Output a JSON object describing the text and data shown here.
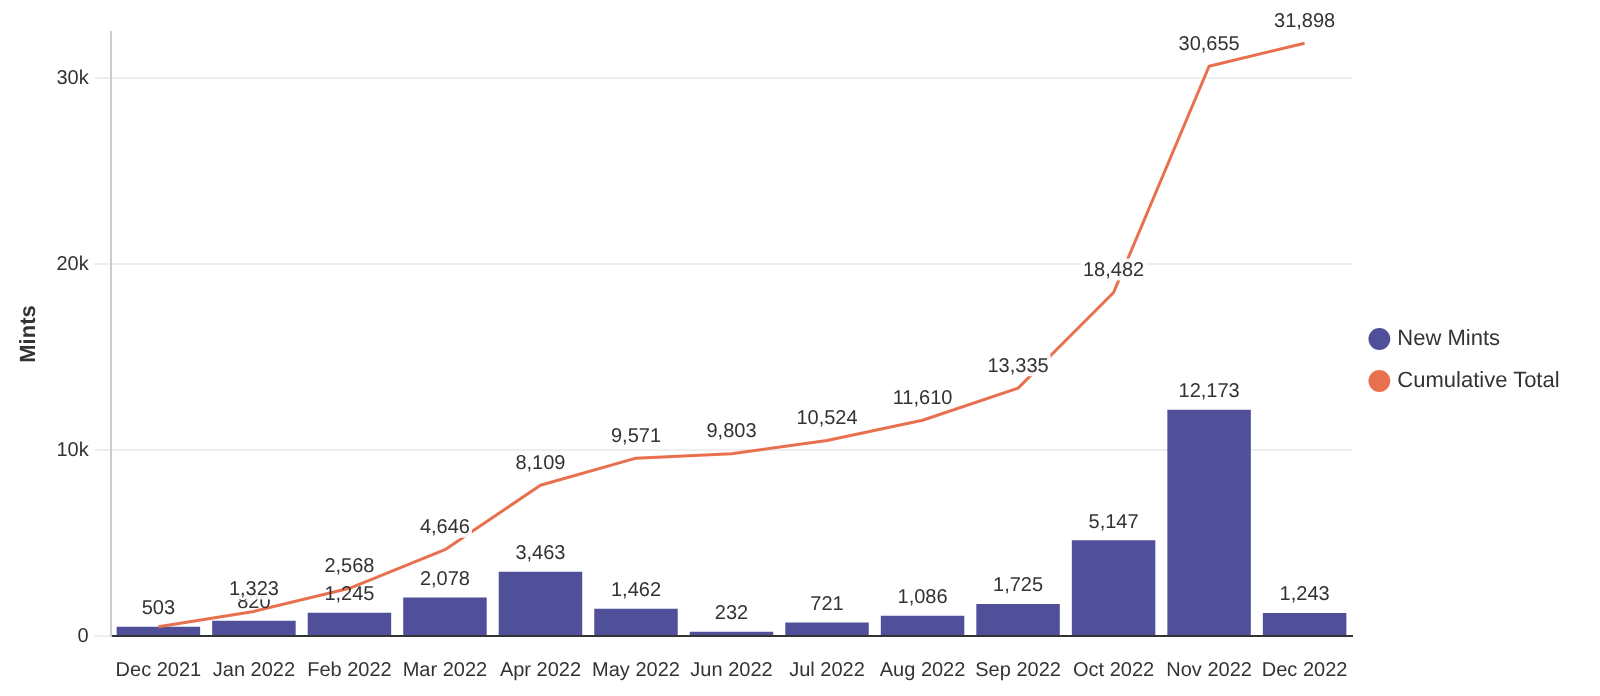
{
  "chart_data": {
    "type": "bar",
    "ylabel": "Mints",
    "categories": [
      "Dec 2021",
      "Jan 2022",
      "Feb 2022",
      "Mar 2022",
      "Apr 2022",
      "May 2022",
      "Jun 2022",
      "Jul 2022",
      "Aug 2022",
      "Sep 2022",
      "Oct 2022",
      "Nov 2022",
      "Dec 2022"
    ],
    "series": [
      {
        "name": "New Mints",
        "color": "#50509a",
        "values": [
          503,
          820,
          1245,
          2078,
          3463,
          1462,
          232,
          721,
          1086,
          1725,
          5147,
          12173,
          1243
        ],
        "value_labels": [
          "503",
          "820",
          "1,245",
          "2,078",
          "3,463",
          "1,462",
          "232",
          "721",
          "1,086",
          "1,725",
          "5,147",
          "12,173",
          "1,243"
        ]
      },
      {
        "name": "Cumulative Total",
        "type": "line",
        "color": "#e8704e",
        "values": [
          503,
          1323,
          2568,
          4646,
          8109,
          9571,
          9803,
          10524,
          11610,
          13335,
          18482,
          30655,
          31898
        ],
        "value_labels": [
          null,
          "1,323",
          "2,568",
          "4,646",
          "8,109",
          "9,571",
          "9,803",
          "10,524",
          "11,610",
          "13,335",
          "18,482",
          "30,655",
          "31,898"
        ]
      }
    ],
    "ylim": [
      0,
      32500
    ],
    "yticks": [
      0,
      {
        "value": 10000,
        "label": "10k"
      },
      {
        "value": 20000,
        "label": "20k"
      },
      {
        "value": 30000,
        "label": "30k"
      }
    ],
    "grid": "y",
    "legend": "right",
    "marker": "none"
  }
}
